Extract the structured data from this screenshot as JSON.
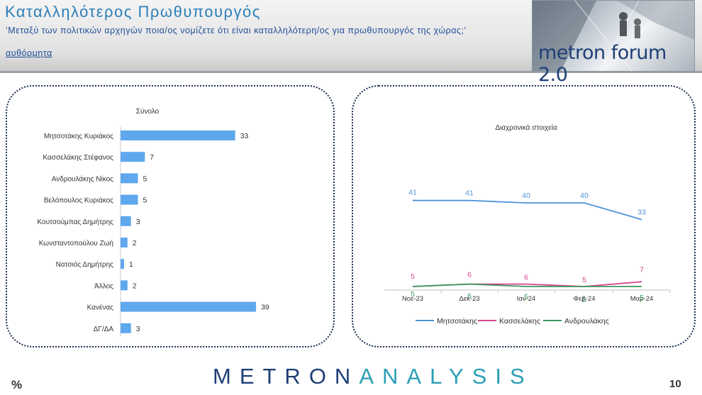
{
  "header": {
    "title": "Καταλληλότερος Πρωθυπουργός",
    "question": "‘Μεταξύ των πολιτικών αρχηγών ποια/ος νομίζετε ότι είναι καταλληλότερη/ος για πρωθυπουργός της χώρας;’",
    "note": "αυθόρμητα",
    "logo_text": "metron forum 2.0"
  },
  "footer": {
    "brand_part1": "METRON",
    "brand_part2": "ANALYSIS",
    "percent_sign": "%",
    "page_number": "10"
  },
  "colors": {
    "bar": "#5fa8ee",
    "mitsotakis": "#4f94d8",
    "kasselakis": "#d6468f",
    "androulakis": "#3a9a5c",
    "brand": "#1f3f76",
    "accent": "#2a9fb4"
  },
  "chart_data": [
    {
      "type": "bar",
      "orientation": "horizontal",
      "title": "Σύνολο",
      "categories": [
        "Μητσοτάκης Κυριάκος",
        "Κασσελάκης Στέφανος",
        "Ανδρουλάκης Νίκος",
        "Βελόπουλος Κυριάκος",
        "Κουτσούμπας Δημήτρης",
        "Κωνσταντοπούλου Ζωή",
        "Νατσιός Δημήτρης",
        "Άλλος",
        "Κανένας",
        "ΔΓ/ΔΑ"
      ],
      "values": [
        33,
        7,
        5,
        5,
        3,
        2,
        1,
        2,
        39,
        3
      ],
      "grid": false
    },
    {
      "type": "line",
      "title": "Διαχρονικά στοιχεία",
      "x": [
        "Νοε-23",
        "Δεκ-23",
        "Ιαν-24",
        "Φεβ-24",
        "Μαρ-24"
      ],
      "series": [
        {
          "name": "Μητσοτάκης",
          "values": [
            41,
            41,
            40,
            40,
            33
          ]
        },
        {
          "name": "Κασσελάκης",
          "values": [
            5,
            6,
            6,
            5,
            7
          ]
        },
        {
          "name": "Ανδρουλάκης",
          "values": [
            5,
            6,
            5,
            5,
            5
          ]
        }
      ],
      "ylim": [
        0,
        45
      ],
      "legend": "bottom",
      "grid": false
    }
  ]
}
